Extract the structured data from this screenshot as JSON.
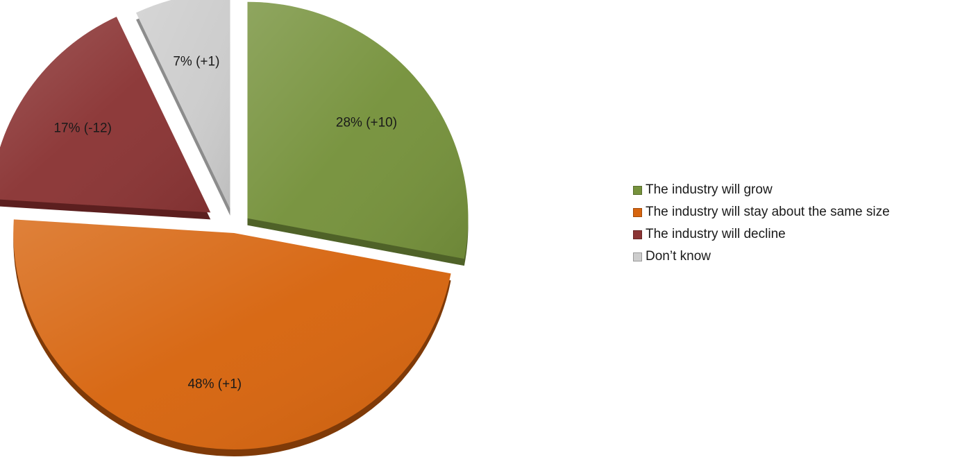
{
  "chart_data": {
    "type": "pie",
    "title": "",
    "slices": [
      {
        "name": "The industry will grow",
        "value": 28,
        "label": "28% (+10)",
        "color": "#76923C",
        "side": "#4F6228",
        "explode": 0.08
      },
      {
        "name": "The industry will stay about the same size",
        "value": 48,
        "label": "48% (+1)",
        "color": "#D7650F",
        "side": "#7F3A08",
        "explode": 0.02
      },
      {
        "name": "The industry will decline",
        "value": 17,
        "label": "17% (-12)",
        "color": "#8B3535",
        "side": "#5C1F1F",
        "explode": 0.14
      },
      {
        "name": "Don’t know",
        "value": 7,
        "label": "7% (+1)",
        "color": "#CDCDCD",
        "side": "#8C8C8C",
        "explode": 0.1
      }
    ],
    "legend_position": "right"
  },
  "legend": {
    "items": [
      {
        "label": "The industry will grow",
        "color": "#76923C"
      },
      {
        "label": "The industry will stay about the same size",
        "color": "#D7650F"
      },
      {
        "label": "The industry will decline",
        "color": "#8B3535"
      },
      {
        "label": "Don’t know",
        "color": "#CDCDCD"
      }
    ]
  }
}
